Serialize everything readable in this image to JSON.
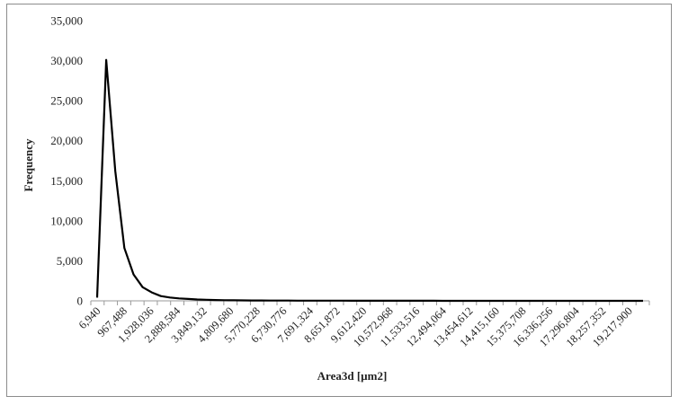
{
  "chart_data": {
    "type": "line",
    "title": "",
    "xlabel": "Area3d [µm2]",
    "ylabel": "Frequency",
    "ylim": [
      0,
      35000
    ],
    "yticks": [
      "0",
      "5,000",
      "10,000",
      "15,000",
      "20,000",
      "25,000",
      "30,000",
      "35,000"
    ],
    "yticks_values": [
      0,
      5000,
      10000,
      15000,
      20000,
      25000,
      30000,
      35000
    ],
    "xtick_labels": [
      "6,940",
      "967,488",
      "1,928,036",
      "2,888,584",
      "3,849,132",
      "4,809,680",
      "5,770,228",
      "6,730,776",
      "7,691,324",
      "8,651,872",
      "9,612,420",
      "10,572,968",
      "11,533,516",
      "12,494,064",
      "13,454,612",
      "14,415,160",
      "15,375,708",
      "16,336,256",
      "17,296,804",
      "18,257,352",
      "19,217,900"
    ],
    "grid": false,
    "legend": "none",
    "line_color": "#000000",
    "series": [
      {
        "values": [
          400,
          30100,
          16200,
          6600,
          3300,
          1700,
          1050,
          600,
          420,
          300,
          230,
          170,
          130,
          100,
          80,
          65,
          55,
          48,
          42,
          38,
          34,
          30,
          28,
          26,
          24,
          22,
          20,
          18,
          16,
          14,
          12,
          11,
          10,
          9,
          8,
          7,
          6,
          6,
          5,
          5,
          4,
          4,
          3,
          3,
          3,
          2,
          2,
          2,
          2,
          2,
          2,
          2,
          2,
          1,
          1,
          1,
          1,
          1,
          1,
          1,
          1
        ]
      }
    ]
  }
}
